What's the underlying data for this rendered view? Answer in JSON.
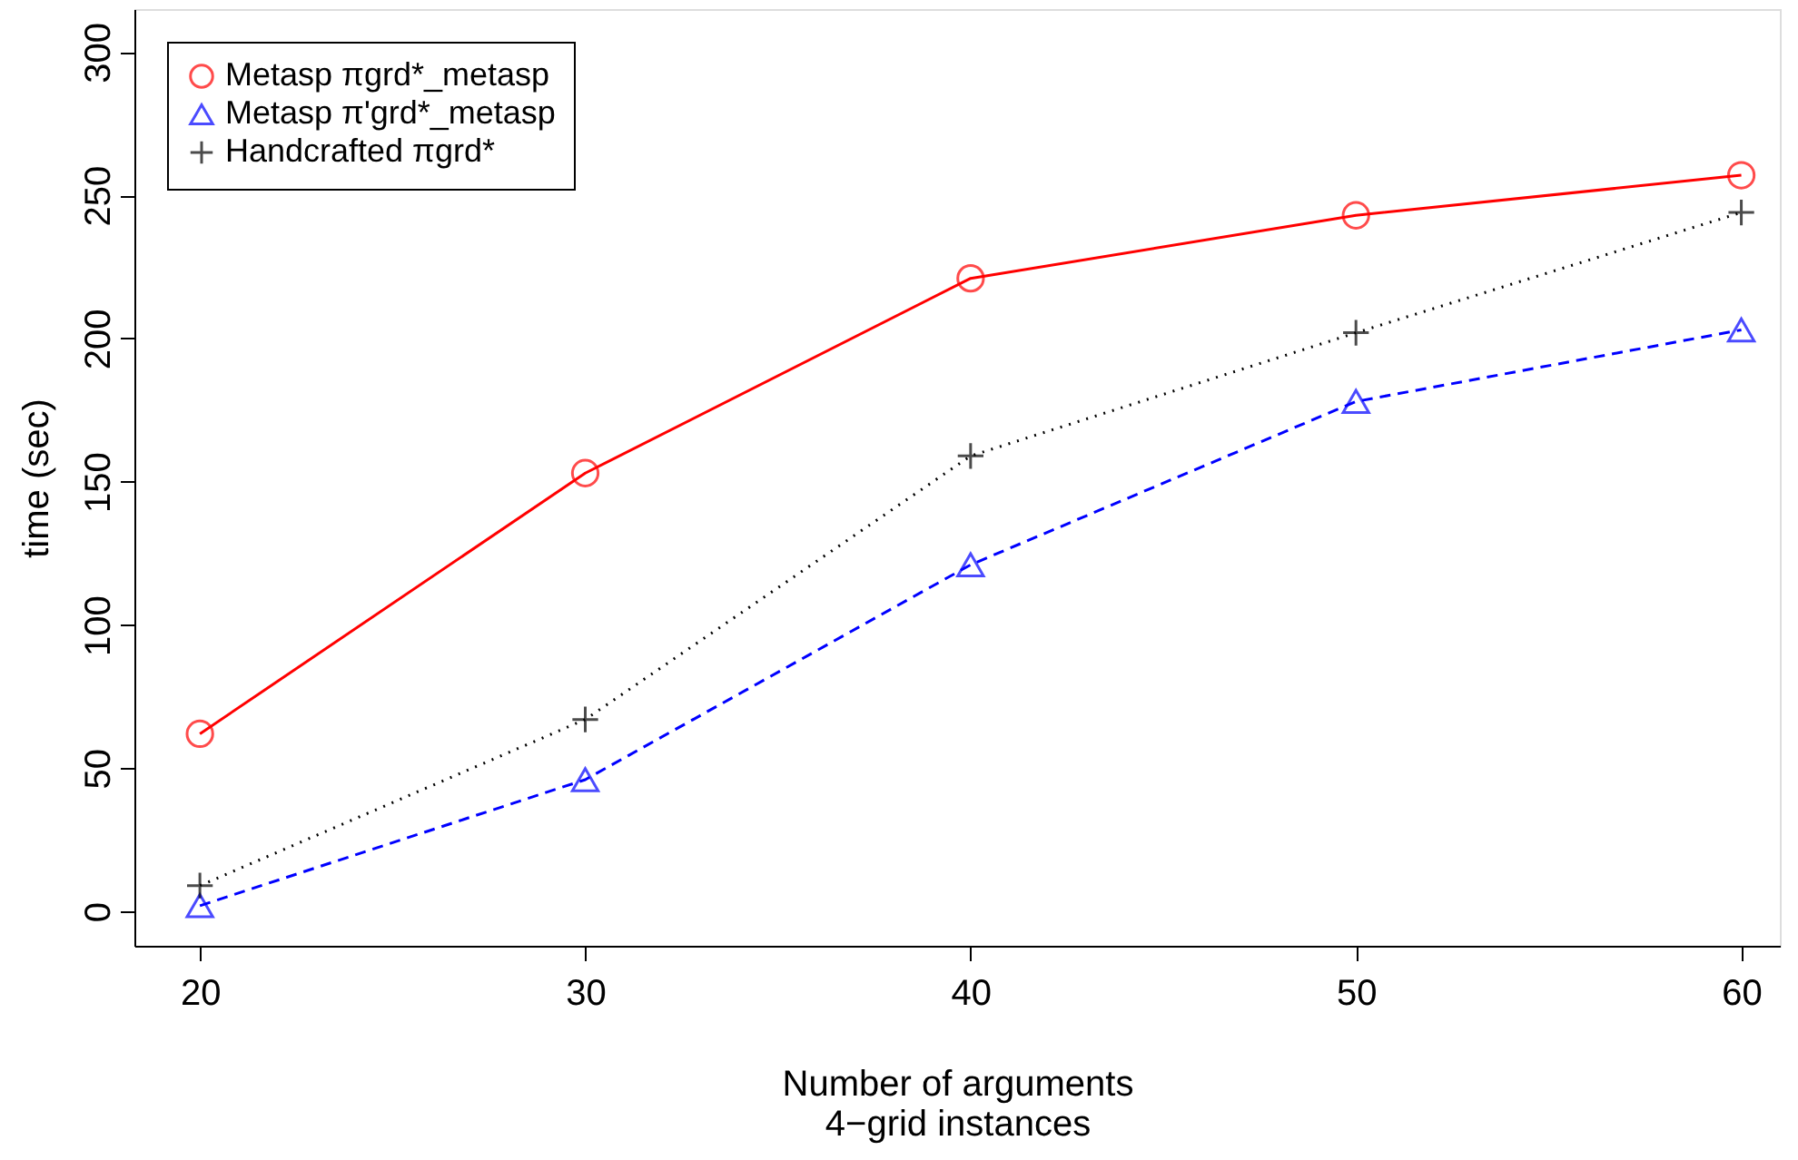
{
  "chart_data": {
    "type": "line",
    "xlabel": "Number of arguments\n4−grid instances",
    "ylabel": "time (sec)",
    "x": [
      20,
      30,
      40,
      50,
      60
    ],
    "series": [
      {
        "name": "Metasp πgrd*_metasp",
        "color": "#ff0000",
        "marker": "circle",
        "line_style": "solid",
        "values": [
          62,
          153,
          221,
          243,
          257
        ]
      },
      {
        "name": "Metasp π'grd*_metasp",
        "color": "#0000ff",
        "marker": "triangle",
        "line_style": "dashed",
        "values": [
          2,
          46,
          121,
          178,
          203
        ]
      },
      {
        "name": "Handcrafted πgrd*",
        "color": "#000000",
        "marker": "cross",
        "line_style": "dotted",
        "values": [
          9,
          67,
          159,
          202,
          244
        ]
      }
    ],
    "xlim": [
      18.3,
      61
    ],
    "ylim": [
      -12,
      315
    ],
    "xticks": [
      20,
      30,
      40,
      50,
      60
    ],
    "yticks": [
      0,
      50,
      100,
      150,
      200,
      250,
      300
    ],
    "grid": false,
    "legend": "top left"
  }
}
